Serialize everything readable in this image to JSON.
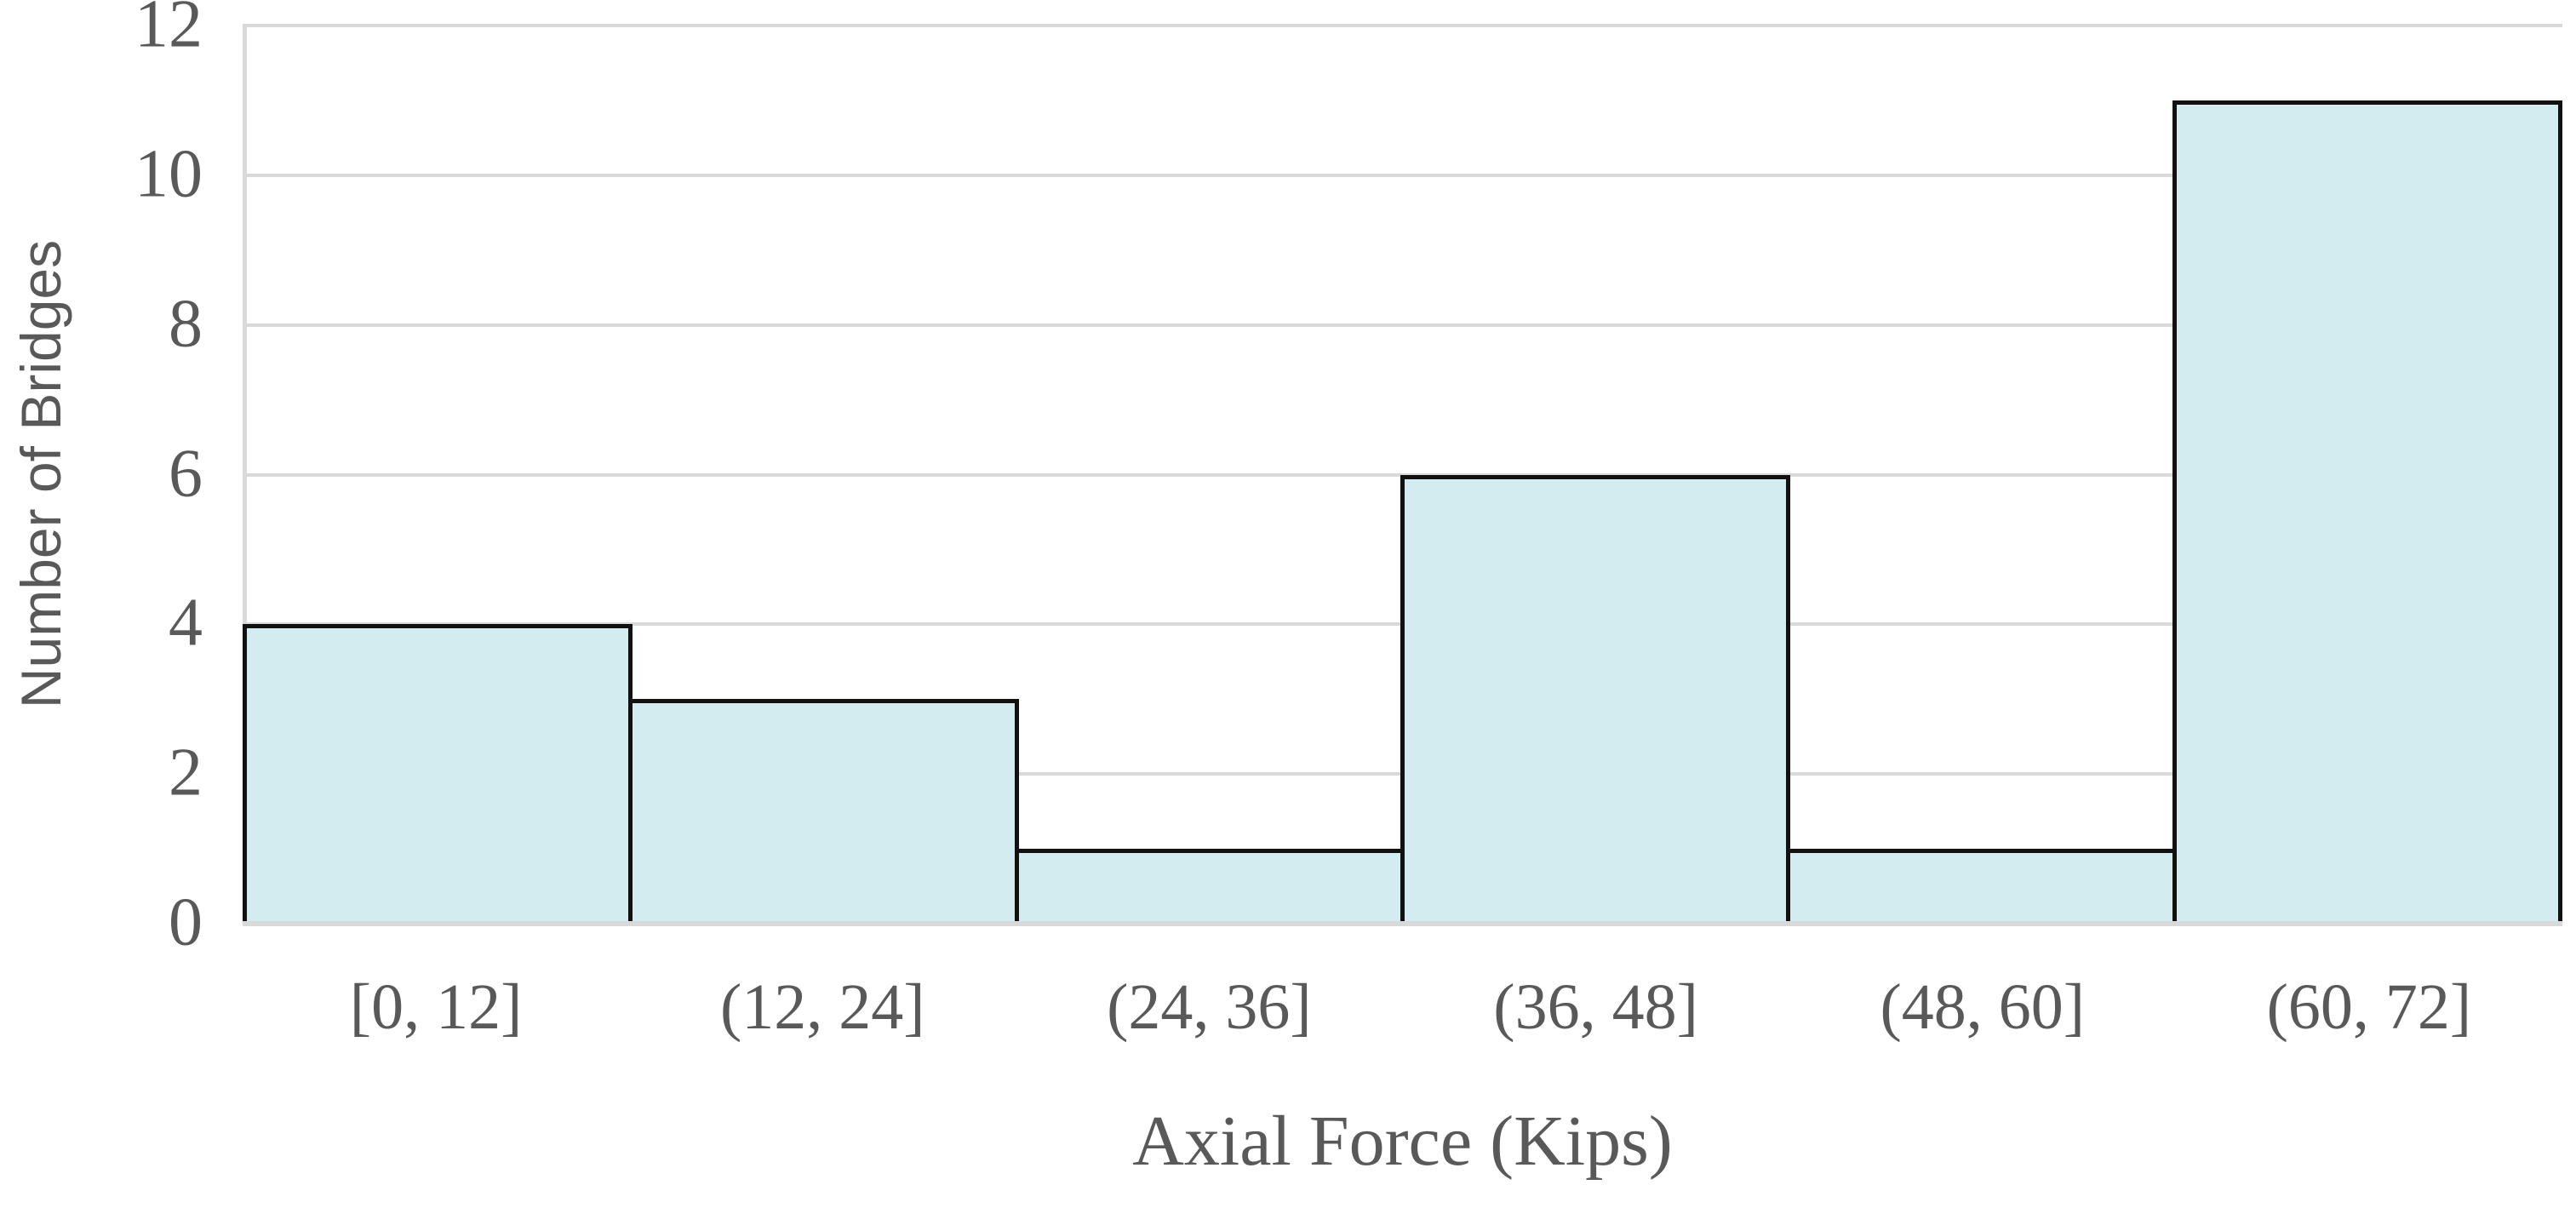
{
  "chart_data": {
    "type": "bar",
    "subtype": "histogram",
    "categories": [
      "[0, 12]",
      "(12, 24]",
      "(24, 36]",
      "(36, 48]",
      "(48, 60]",
      "(60, 72]"
    ],
    "values": [
      4,
      3,
      1,
      6,
      1,
      11
    ],
    "xlabel": "Axial Force (Kips)",
    "ylabel": "Number of Bridges",
    "ylim": [
      0,
      12
    ],
    "yticks": [
      0,
      2,
      4,
      6,
      8,
      10,
      12
    ],
    "grid": "horizontal-on",
    "legend": "none",
    "bar_gap": 0
  },
  "colors": {
    "bar_fill": "#d3ecf0",
    "bar_border": "#111111",
    "gridline": "#d9d9d9",
    "text": "#595959",
    "background": "#ffffff"
  }
}
